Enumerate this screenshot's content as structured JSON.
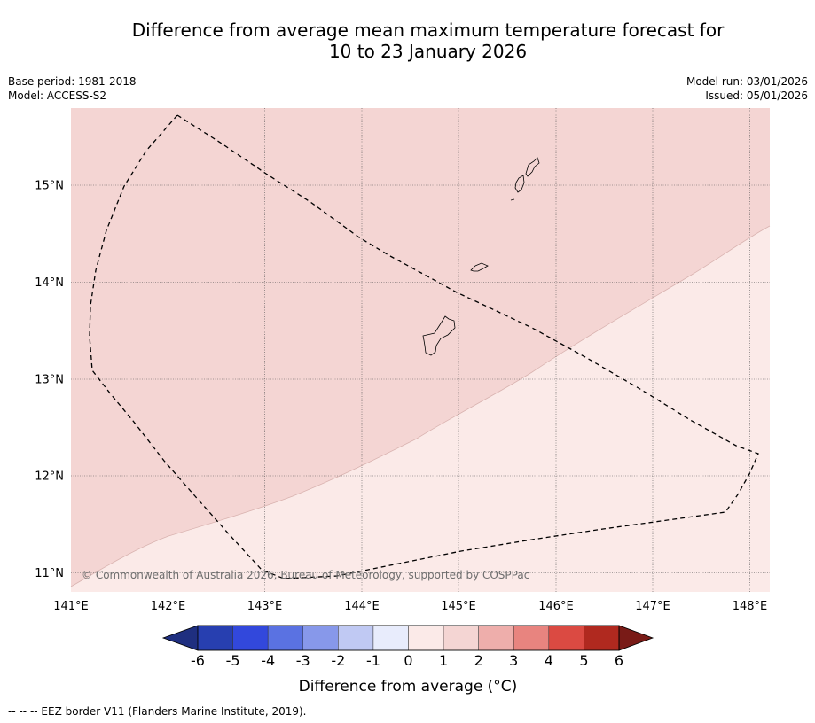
{
  "title_line1": "Difference from average mean maximum temperature forecast for",
  "title_line2": "10 to 23 January 2026",
  "meta_left": {
    "base_period": "Base period: 1981-2018",
    "model": "Model: ACCESS-S2"
  },
  "meta_right": {
    "model_run": "Model run: 03/01/2026",
    "issued": "Issued: 05/01/2026"
  },
  "map": {
    "lon_labels": [
      "141°E",
      "142°E",
      "143°E",
      "144°E",
      "145°E",
      "146°E",
      "147°E",
      "148°E"
    ],
    "lat_labels": [
      "15°N",
      "14°N",
      "13°N",
      "12°N",
      "11°N"
    ],
    "copyright": "© Commonwealth of Australia 2026, Bureau of Meteorology, supported by COSPPac"
  },
  "colorbar": {
    "labels": [
      "-6",
      "-5",
      "-4",
      "-3",
      "-2",
      "-1",
      "0",
      "1",
      "2",
      "3",
      "4",
      "5",
      "6"
    ],
    "colors": [
      "#1f2f80",
      "#273fb0",
      "#3248dc",
      "#5a72e2",
      "#8798ea",
      "#c0c9f3",
      "#e8ecfc",
      "#fbeae8",
      "#f4d5d3",
      "#eeaeab",
      "#e8847f",
      "#db4a42",
      "#b0291f",
      "#791b17"
    ],
    "title": "Difference from average (°C)"
  },
  "footer": "-- -- -- EEZ border V11 (Flanders Marine Institute, 2019).",
  "colors": {
    "band_0_1": "#fbeae8",
    "band_1_2": "#f4d5d3",
    "grid": "#555555"
  }
}
